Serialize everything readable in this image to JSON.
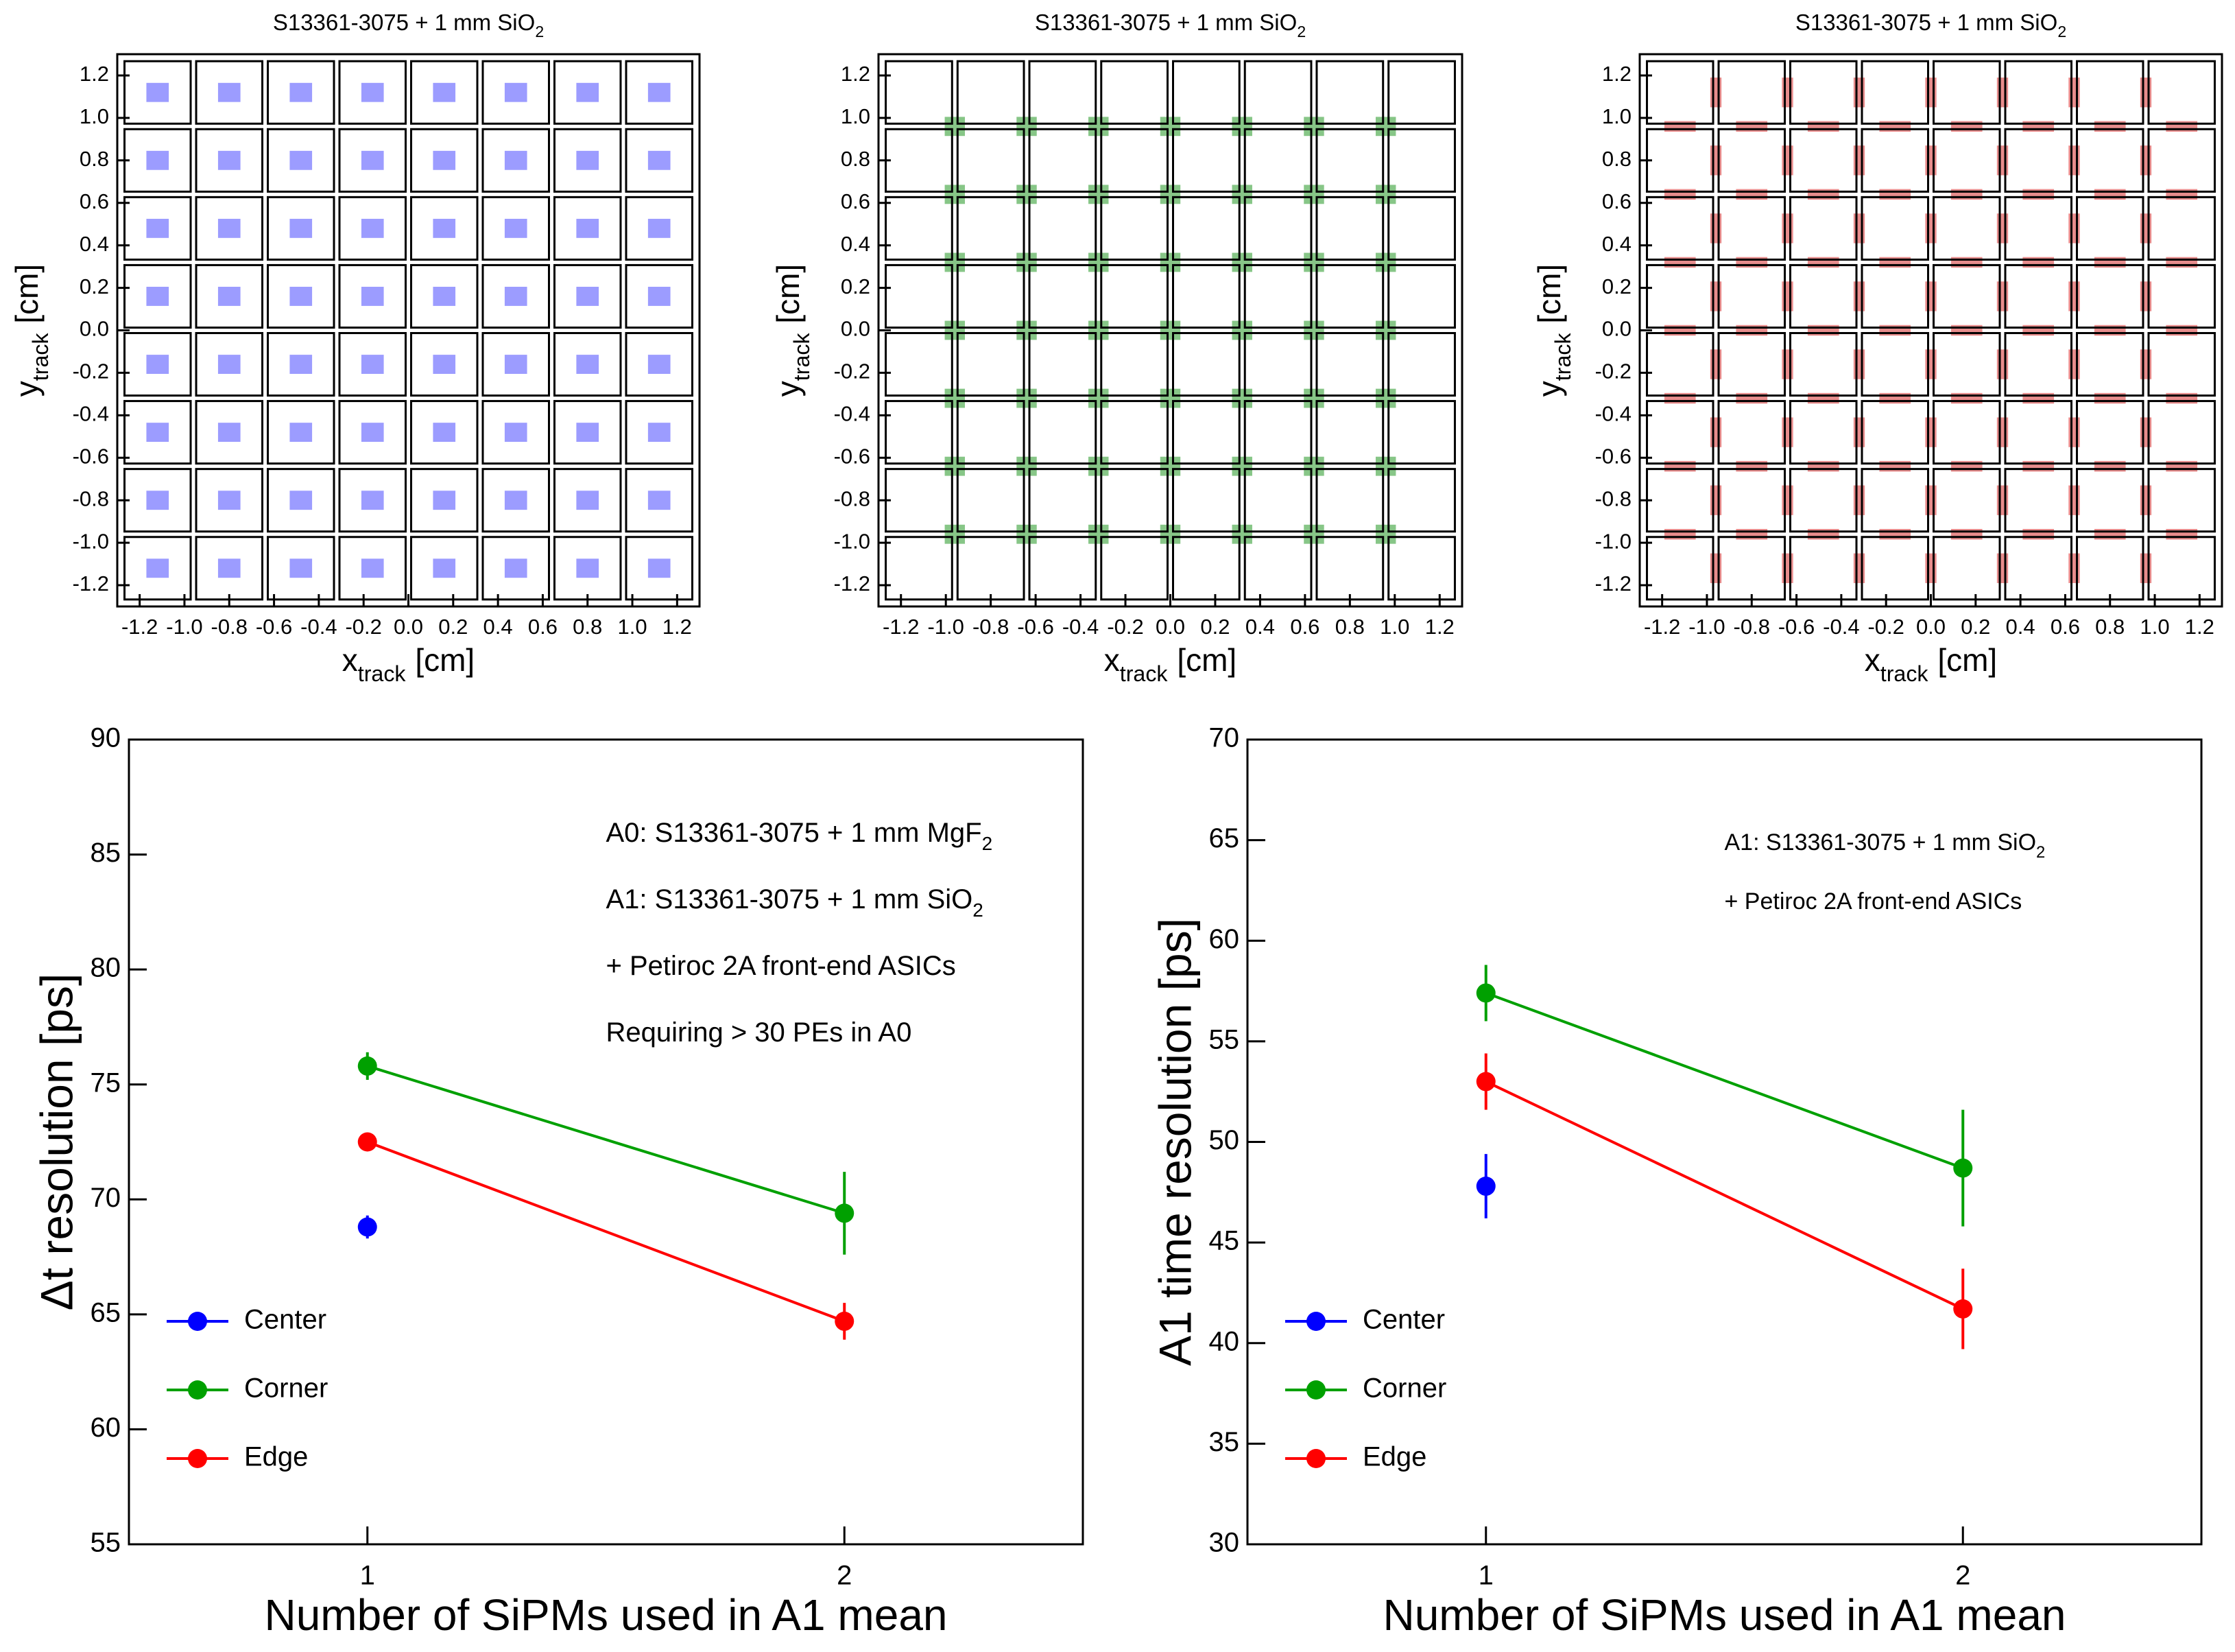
{
  "chart_data": [
    {
      "type": "map",
      "title": "S13361-3075 + 1 mm SiO",
      "title_sub": "2",
      "xlabel": "x",
      "xlabel_sub": "track",
      "xlabel_unit": "[cm]",
      "ylabel": "y",
      "ylabel_sub": "track",
      "ylabel_unit": "[cm]",
      "xlim": [
        -1.3,
        1.3
      ],
      "ylim": [
        -1.3,
        1.3
      ],
      "xticks": [
        -1.2,
        {
          "value": -1,
          "label": "-1.0"
        },
        -0.8,
        -0.6,
        -0.4,
        -0.2,
        {
          "value": 0,
          "label": "0.0"
        },
        0.2,
        0.4,
        0.6,
        0.8,
        {
          "value": 1,
          "label": "1.0"
        },
        1.2
      ],
      "yticks": [
        -1.2,
        {
          "value": -1,
          "label": "-1.0"
        },
        -0.8,
        -0.6,
        -0.4,
        -0.2,
        {
          "value": 0,
          "label": "0.0"
        },
        0.2,
        0.4,
        0.6,
        0.8,
        {
          "value": 1,
          "label": "1.0"
        },
        1.2
      ],
      "cell_edges": [
        -1.28,
        -0.96,
        -0.64,
        -0.32,
        0,
        0.32,
        0.64,
        0.96,
        1.28
      ],
      "region": {
        "placement": "center",
        "color": "#7b7bff",
        "size": [
          0.1,
          0.09
        ]
      }
    },
    {
      "type": "map",
      "title": "S13361-3075 + 1 mm SiO",
      "title_sub": "2",
      "xlabel": "x",
      "xlabel_sub": "track",
      "xlabel_unit": "[cm]",
      "ylabel": "y",
      "ylabel_sub": "track",
      "ylabel_unit": "[cm]",
      "xlim": [
        -1.3,
        1.3
      ],
      "ylim": [
        -1.3,
        1.3
      ],
      "xticks": [
        -1.2,
        {
          "value": -1,
          "label": "-1.0"
        },
        -0.8,
        -0.6,
        -0.4,
        -0.2,
        {
          "value": 0,
          "label": "0.0"
        },
        0.2,
        0.4,
        0.6,
        0.8,
        {
          "value": 1,
          "label": "1.0"
        },
        1.2
      ],
      "yticks": [
        -1.2,
        {
          "value": -1,
          "label": "-1.0"
        },
        -0.8,
        -0.6,
        -0.4,
        -0.2,
        {
          "value": 0,
          "label": "0.0"
        },
        0.2,
        0.4,
        0.6,
        0.8,
        {
          "value": 1,
          "label": "1.0"
        },
        1.2
      ],
      "cell_edges": [
        -1.28,
        -0.96,
        -0.64,
        -0.32,
        0,
        0.32,
        0.64,
        0.96,
        1.28
      ],
      "region": {
        "placement": "corner",
        "color": "#5fb35f",
        "size": [
          0.09,
          0.09
        ]
      }
    },
    {
      "type": "map",
      "title": "S13361-3075 + 1 mm SiO",
      "title_sub": "2",
      "xlabel": "x",
      "xlabel_sub": "track",
      "xlabel_unit": "[cm]",
      "ylabel": "y",
      "ylabel_sub": "track",
      "ylabel_unit": "[cm]",
      "xlim": [
        -1.3,
        1.3
      ],
      "ylim": [
        -1.3,
        1.3
      ],
      "xticks": [
        -1.2,
        {
          "value": -1,
          "label": "-1.0"
        },
        -0.8,
        -0.6,
        -0.4,
        -0.2,
        {
          "value": 0,
          "label": "0.0"
        },
        0.2,
        0.4,
        0.6,
        0.8,
        {
          "value": 1,
          "label": "1.0"
        },
        1.2
      ],
      "yticks": [
        -1.2,
        {
          "value": -1,
          "label": "-1.0"
        },
        -0.8,
        -0.6,
        -0.4,
        -0.2,
        {
          "value": 0,
          "label": "0.0"
        },
        0.2,
        0.4,
        0.6,
        0.8,
        {
          "value": 1,
          "label": "1.0"
        },
        1.2
      ],
      "cell_edges": [
        -1.28,
        -0.96,
        -0.64,
        -0.32,
        0,
        0.32,
        0.64,
        0.96,
        1.28
      ],
      "region": {
        "placement": "edge",
        "color": "#e06666",
        "size": [
          0.05,
          0.14
        ]
      }
    },
    {
      "type": "line",
      "xlabel": "Number of SiPMs used in A1 mean",
      "ylabel": "Δt resolution [ps]",
      "x": [
        1,
        2
      ],
      "xlim": [
        0.5,
        2.5
      ],
      "xticks": [
        1,
        2
      ],
      "ylim": [
        55,
        90
      ],
      "yticks": [
        55,
        60,
        65,
        70,
        75,
        80,
        85,
        90
      ],
      "series": [
        {
          "name": "Center",
          "color": "#0000ff",
          "values": [
            68.8,
            null
          ],
          "errors": [
            0.5,
            null
          ]
        },
        {
          "name": "Corner",
          "color": "#00a000",
          "values": [
            75.8,
            69.4
          ],
          "errors": [
            0.6,
            1.8
          ]
        },
        {
          "name": "Edge",
          "color": "#ff0000",
          "values": [
            72.5,
            64.7
          ],
          "errors": [
            0.3,
            0.8
          ]
        }
      ],
      "legend": "lower left",
      "annotations": [
        {
          "text": "A0: S13361-3075 + 1 mm MgF",
          "sub": "2"
        },
        {
          "text": "A1: S13361-3075 + 1 mm SiO",
          "sub": "2"
        },
        {
          "text": "+ Petiroc 2A front-end ASICs"
        },
        {
          "text": "Requiring > 30 PEs in A0"
        }
      ]
    },
    {
      "type": "line",
      "xlabel": "Number of SiPMs used in A1 mean",
      "ylabel": "A1 time resolution [ps]",
      "x": [
        1,
        2
      ],
      "xlim": [
        0.5,
        2.5
      ],
      "xticks": [
        1,
        2
      ],
      "ylim": [
        30,
        70
      ],
      "yticks": [
        30,
        35,
        40,
        45,
        50,
        55,
        60,
        65,
        70
      ],
      "series": [
        {
          "name": "Center",
          "color": "#0000ff",
          "values": [
            47.8,
            null
          ],
          "errors": [
            1.6,
            null
          ]
        },
        {
          "name": "Corner",
          "color": "#00a000",
          "values": [
            57.4,
            48.7
          ],
          "errors": [
            1.4,
            2.9
          ]
        },
        {
          "name": "Edge",
          "color": "#ff0000",
          "values": [
            53.0,
            41.7
          ],
          "errors": [
            1.4,
            2.0
          ]
        }
      ],
      "legend": "lower left",
      "annotations": [
        {
          "text": "A1: S13361-3075 + 1 mm SiO",
          "sub": "2"
        },
        {
          "text": "+ Petiroc 2A front-end ASICs"
        }
      ]
    }
  ]
}
